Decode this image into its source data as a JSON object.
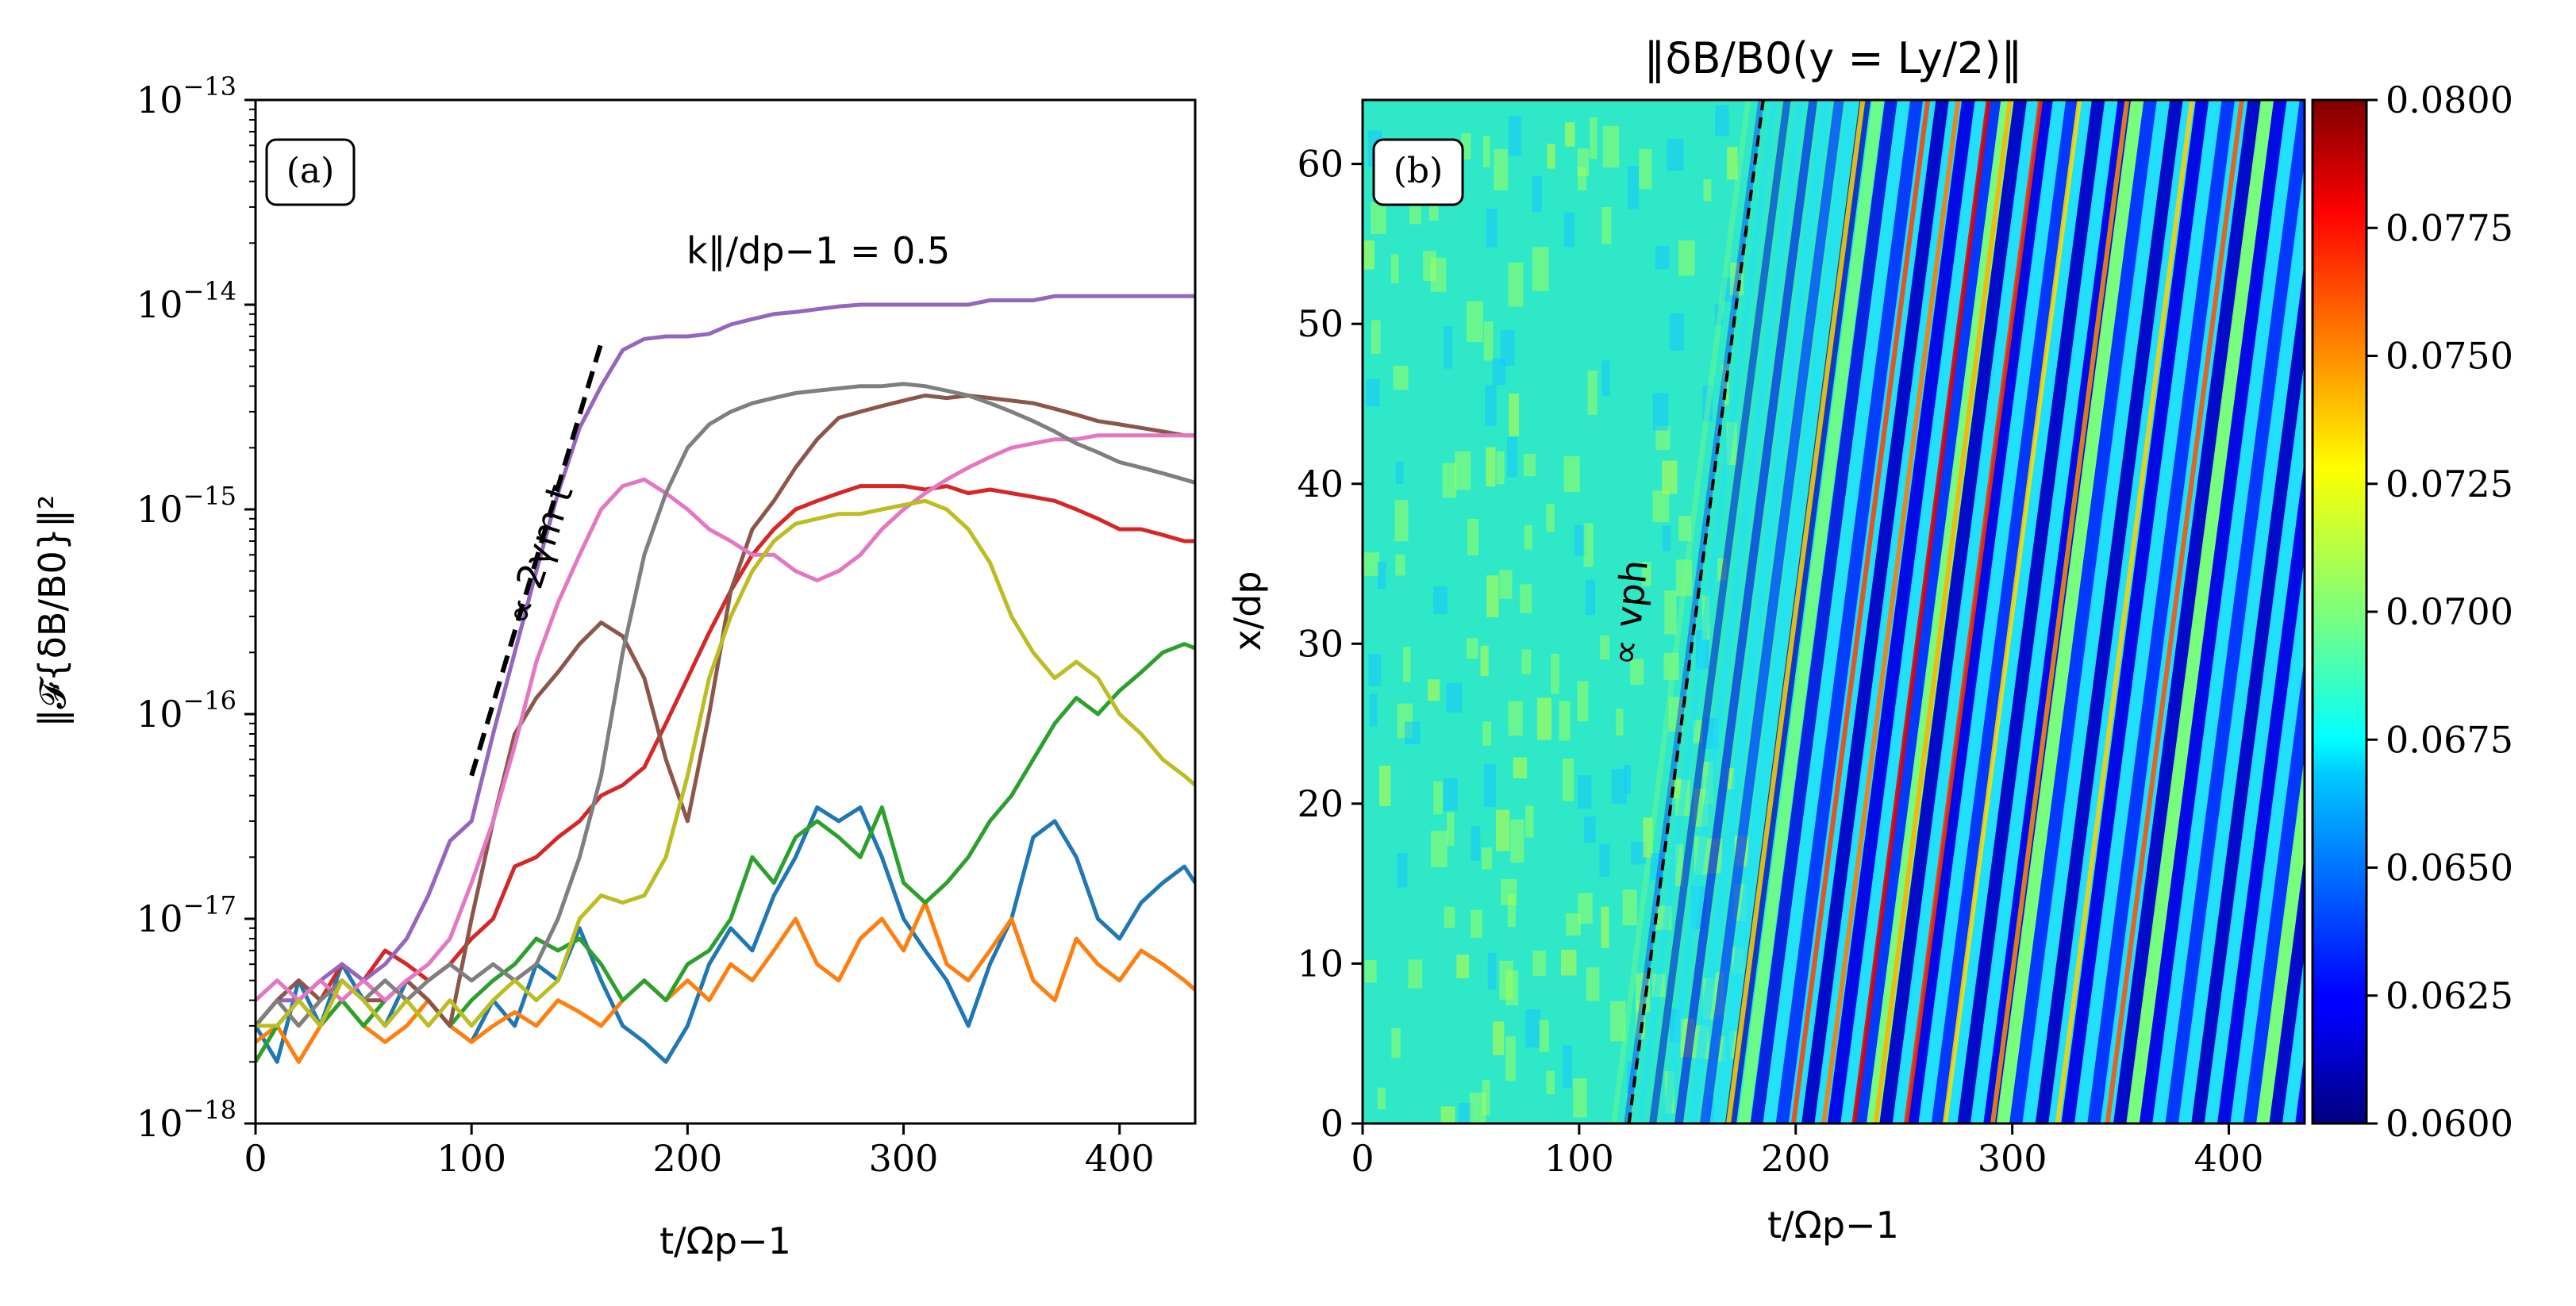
{
  "chart_data": [
    {
      "panel": "(a)",
      "type": "line",
      "yscale": "log",
      "xlim": [
        0,
        435
      ],
      "ylim": [
        1e-18,
        1e-13
      ],
      "xticks": [
        0,
        100,
        200,
        300,
        400
      ],
      "xtick_labels": [
        "0",
        "100",
        "200",
        "300",
        "400"
      ],
      "yticks": [
        1e-18,
        1e-17,
        1e-16,
        1e-15,
        1e-14,
        1e-13
      ],
      "ytick_bases": [
        "10",
        "10",
        "10",
        "10",
        "10",
        "10"
      ],
      "ytick_exponents": [
        "−18",
        "−17",
        "−16",
        "−15",
        "−14",
        "−13"
      ],
      "xlabel": "t/Ωp−1",
      "ylabel": "‖𝓕{δB/B0}‖²",
      "annotations": {
        "k_label": "k∥/dp−1 = 0.5",
        "growth_label": "∝ 2γm t"
      },
      "guide_line": {
        "x": [
          100,
          160
        ],
        "y": [
          5e-17,
          6.5e-15
        ],
        "color": "#000000",
        "style": "dashed"
      },
      "series": [
        {
          "name": "blue",
          "color": "#1f77b4",
          "x": [
            0,
            10,
            20,
            30,
            40,
            50,
            60,
            70,
            80,
            90,
            100,
            110,
            120,
            130,
            140,
            150,
            160,
            170,
            180,
            190,
            200,
            210,
            220,
            230,
            240,
            250,
            260,
            270,
            280,
            290,
            300,
            310,
            320,
            330,
            340,
            350,
            360,
            370,
            380,
            390,
            400,
            410,
            420,
            430,
            435
          ],
          "y": [
            3e-18,
            2e-18,
            5e-18,
            3e-18,
            6e-18,
            4e-18,
            3e-18,
            5e-18,
            4e-18,
            3e-18,
            2.5e-18,
            4e-18,
            3e-18,
            6e-18,
            5e-18,
            9e-18,
            5e-18,
            3e-18,
            2.5e-18,
            2e-18,
            3e-18,
            6e-18,
            9e-18,
            7e-18,
            1.3e-17,
            2e-17,
            3.5e-17,
            3e-17,
            3.5e-17,
            2e-17,
            1e-17,
            7e-18,
            5e-18,
            3e-18,
            6e-18,
            1e-17,
            2.5e-17,
            3e-17,
            2e-17,
            1e-17,
            8e-18,
            1.2e-17,
            1.5e-17,
            1.8e-17,
            1.5e-17
          ]
        },
        {
          "name": "orange",
          "color": "#ff7f0e",
          "x": [
            0,
            10,
            20,
            30,
            40,
            50,
            60,
            70,
            80,
            90,
            100,
            110,
            120,
            130,
            140,
            150,
            160,
            170,
            180,
            190,
            200,
            210,
            220,
            230,
            240,
            250,
            260,
            270,
            280,
            290,
            300,
            310,
            320,
            330,
            340,
            350,
            360,
            370,
            380,
            390,
            400,
            410,
            420,
            430,
            435
          ],
          "y": [
            2.5e-18,
            3e-18,
            2e-18,
            3e-18,
            4e-18,
            3e-18,
            2.5e-18,
            3e-18,
            4e-18,
            3e-18,
            2.5e-18,
            3e-18,
            3.5e-18,
            3e-18,
            4e-18,
            3.5e-18,
            3e-18,
            4e-18,
            5e-18,
            4e-18,
            5e-18,
            4e-18,
            6e-18,
            5e-18,
            7e-18,
            1e-17,
            6e-18,
            5e-18,
            8e-18,
            1e-17,
            7e-18,
            1.2e-17,
            6e-18,
            5e-18,
            7e-18,
            1e-17,
            5e-18,
            4e-18,
            8e-18,
            6e-18,
            5e-18,
            7e-18,
            6e-18,
            5e-18,
            4.5e-18
          ]
        },
        {
          "name": "green",
          "color": "#2ca02c",
          "x": [
            0,
            10,
            20,
            30,
            40,
            50,
            60,
            70,
            80,
            90,
            100,
            110,
            120,
            130,
            140,
            150,
            160,
            170,
            180,
            190,
            200,
            210,
            220,
            230,
            240,
            250,
            260,
            270,
            280,
            290,
            300,
            310,
            320,
            330,
            340,
            350,
            360,
            370,
            380,
            390,
            400,
            410,
            420,
            430,
            435
          ],
          "y": [
            2e-18,
            3e-18,
            4e-18,
            3e-18,
            4e-18,
            3e-18,
            4e-18,
            5e-18,
            4e-18,
            3e-18,
            4e-18,
            5e-18,
            6e-18,
            8e-18,
            7e-18,
            8e-18,
            6e-18,
            4e-18,
            5e-18,
            4e-18,
            6e-18,
            7e-18,
            1e-17,
            2e-17,
            1.5e-17,
            2.5e-17,
            3e-17,
            2.5e-17,
            2e-17,
            3.5e-17,
            1.5e-17,
            1.2e-17,
            1.5e-17,
            2e-17,
            3e-17,
            4e-17,
            6e-17,
            9e-17,
            1.2e-16,
            1e-16,
            1.3e-16,
            1.6e-16,
            2e-16,
            2.2e-16,
            2.1e-16
          ]
        },
        {
          "name": "red",
          "color": "#d62728",
          "x": [
            0,
            10,
            20,
            30,
            40,
            50,
            60,
            70,
            80,
            90,
            100,
            110,
            120,
            130,
            140,
            150,
            160,
            170,
            180,
            190,
            200,
            210,
            220,
            230,
            240,
            250,
            260,
            270,
            280,
            290,
            300,
            310,
            320,
            330,
            340,
            350,
            360,
            370,
            380,
            390,
            400,
            410,
            420,
            430,
            435
          ],
          "y": [
            3e-18,
            4e-18,
            5e-18,
            4e-18,
            6e-18,
            5e-18,
            7e-18,
            6e-18,
            5e-18,
            6e-18,
            8e-18,
            1e-17,
            1.8e-17,
            2e-17,
            2.5e-17,
            3e-17,
            4e-17,
            4.5e-17,
            5.5e-17,
            9e-17,
            1.5e-16,
            2.5e-16,
            4e-16,
            6e-16,
            8e-16,
            1e-15,
            1.1e-15,
            1.2e-15,
            1.3e-15,
            1.3e-15,
            1.3e-15,
            1.25e-15,
            1.3e-15,
            1.2e-15,
            1.25e-15,
            1.2e-15,
            1.15e-15,
            1.1e-15,
            1e-15,
            9e-16,
            8e-16,
            8e-16,
            7.5e-16,
            7e-16,
            7e-16
          ]
        },
        {
          "name": "purple",
          "color": "#9467bd",
          "x": [
            0,
            10,
            20,
            30,
            40,
            50,
            60,
            70,
            80,
            90,
            100,
            110,
            120,
            130,
            140,
            150,
            160,
            170,
            180,
            190,
            200,
            210,
            220,
            230,
            240,
            250,
            260,
            270,
            280,
            290,
            300,
            310,
            320,
            330,
            340,
            350,
            360,
            370,
            380,
            390,
            400,
            410,
            420,
            430,
            435
          ],
          "y": [
            3e-18,
            4e-18,
            4e-18,
            5e-18,
            6e-18,
            5e-18,
            6e-18,
            8e-18,
            1.3e-17,
            2.4e-17,
            3e-17,
            8e-17,
            2e-16,
            5e-16,
            1.2e-15,
            2.5e-15,
            4e-15,
            6e-15,
            6.8e-15,
            7e-15,
            7e-15,
            7.2e-15,
            8e-15,
            8.5e-15,
            9e-15,
            9.2e-15,
            9.5e-15,
            9.8e-15,
            1e-14,
            1e-14,
            1e-14,
            1e-14,
            1e-14,
            1e-14,
            1.05e-14,
            1.05e-14,
            1.05e-14,
            1.1e-14,
            1.1e-14,
            1.1e-14,
            1.1e-14,
            1.1e-14,
            1.1e-14,
            1.1e-14,
            1.1e-14
          ]
        },
        {
          "name": "brown",
          "color": "#8c564b",
          "x": [
            0,
            10,
            20,
            30,
            40,
            50,
            60,
            70,
            80,
            90,
            100,
            110,
            120,
            130,
            140,
            150,
            160,
            170,
            180,
            190,
            200,
            210,
            220,
            230,
            240,
            250,
            260,
            270,
            280,
            290,
            300,
            310,
            320,
            330,
            340,
            350,
            360,
            370,
            380,
            390,
            400,
            410,
            420,
            430,
            435
          ],
          "y": [
            3e-18,
            4e-18,
            5e-18,
            4e-18,
            5e-18,
            4e-18,
            4e-18,
            5e-18,
            4e-18,
            3e-18,
            1e-17,
            3e-17,
            8e-17,
            1.2e-16,
            1.6e-16,
            2.2e-16,
            2.8e-16,
            2.4e-16,
            1.5e-16,
            6e-17,
            3e-17,
            1e-16,
            4e-16,
            8e-16,
            1.1e-15,
            1.6e-15,
            2.2e-15,
            2.8e-15,
            3e-15,
            3.2e-15,
            3.4e-15,
            3.6e-15,
            3.5e-15,
            3.6e-15,
            3.5e-15,
            3.4e-15,
            3.3e-15,
            3.1e-15,
            2.9e-15,
            2.7e-15,
            2.6e-15,
            2.5e-15,
            2.4e-15,
            2.3e-15,
            2.3e-15
          ]
        },
        {
          "name": "pink",
          "color": "#e377c2",
          "x": [
            0,
            10,
            20,
            30,
            40,
            50,
            60,
            70,
            80,
            90,
            100,
            110,
            120,
            130,
            140,
            150,
            160,
            170,
            180,
            190,
            200,
            210,
            220,
            230,
            240,
            250,
            260,
            270,
            280,
            290,
            300,
            310,
            320,
            330,
            340,
            350,
            360,
            370,
            380,
            390,
            400,
            410,
            420,
            430,
            435
          ],
          "y": [
            4e-18,
            5e-18,
            4e-18,
            5e-18,
            4e-18,
            5e-18,
            4e-18,
            5e-18,
            6e-18,
            8e-18,
            1.5e-17,
            3e-17,
            7e-17,
            1.8e-16,
            3.5e-16,
            6e-16,
            1e-15,
            1.3e-15,
            1.4e-15,
            1.2e-15,
            1e-15,
            8e-16,
            7e-16,
            6e-16,
            6e-16,
            5e-16,
            4.5e-16,
            5e-16,
            6e-16,
            8e-16,
            1e-15,
            1.2e-15,
            1.4e-15,
            1.6e-15,
            1.8e-15,
            2e-15,
            2.1e-15,
            2.2e-15,
            2.2e-15,
            2.3e-15,
            2.3e-15,
            2.3e-15,
            2.3e-15,
            2.3e-15,
            2.3e-15
          ]
        },
        {
          "name": "gray",
          "color": "#7f7f7f",
          "x": [
            0,
            10,
            20,
            30,
            40,
            50,
            60,
            70,
            80,
            90,
            100,
            110,
            120,
            130,
            140,
            150,
            160,
            170,
            180,
            190,
            200,
            210,
            220,
            230,
            240,
            250,
            260,
            270,
            280,
            290,
            300,
            310,
            320,
            330,
            340,
            350,
            360,
            370,
            380,
            390,
            400,
            410,
            420,
            430,
            435
          ],
          "y": [
            3e-18,
            4e-18,
            3e-18,
            4e-18,
            5e-18,
            4e-18,
            5e-18,
            4e-18,
            5e-18,
            6e-18,
            5e-18,
            6e-18,
            5e-18,
            6e-18,
            1e-17,
            2e-17,
            5e-17,
            2e-16,
            6e-16,
            1.2e-15,
            2e-15,
            2.6e-15,
            3e-15,
            3.3e-15,
            3.5e-15,
            3.7e-15,
            3.8e-15,
            3.9e-15,
            4e-15,
            4e-15,
            4.1e-15,
            4e-15,
            3.8e-15,
            3.6e-15,
            3.3e-15,
            3e-15,
            2.7e-15,
            2.4e-15,
            2.1e-15,
            1.9e-15,
            1.7e-15,
            1.6e-15,
            1.5e-15,
            1.4e-15,
            1.35e-15
          ]
        },
        {
          "name": "olive",
          "color": "#bcbd22",
          "x": [
            0,
            10,
            20,
            30,
            40,
            50,
            60,
            70,
            80,
            90,
            100,
            110,
            120,
            130,
            140,
            150,
            160,
            170,
            180,
            190,
            200,
            210,
            220,
            230,
            240,
            250,
            260,
            270,
            280,
            290,
            300,
            310,
            320,
            330,
            340,
            350,
            360,
            370,
            380,
            390,
            400,
            410,
            420,
            430,
            435
          ],
          "y": [
            3e-18,
            3e-18,
            4e-18,
            3e-18,
            5e-18,
            4e-18,
            3e-18,
            4e-18,
            3e-18,
            4e-18,
            3e-18,
            4e-18,
            5e-18,
            4e-18,
            5e-18,
            1e-17,
            1.3e-17,
            1.2e-17,
            1.3e-17,
            2e-17,
            5e-17,
            1.5e-16,
            3e-16,
            5e-16,
            7e-16,
            8.5e-16,
            9e-16,
            9.5e-16,
            9.5e-16,
            1e-15,
            1.05e-15,
            1.1e-15,
            1e-15,
            8e-16,
            5.5e-16,
            3e-16,
            2e-16,
            1.5e-16,
            1.8e-16,
            1.5e-16,
            1e-16,
            8e-17,
            6e-17,
            5e-17,
            4.5e-17
          ]
        }
      ]
    },
    {
      "panel": "(b)",
      "type": "heatmap",
      "title": "‖δB/B0(y = Ly/2)‖",
      "xlim": [
        0,
        435
      ],
      "ylim": [
        0,
        64
      ],
      "xticks": [
        0,
        100,
        200,
        300,
        400
      ],
      "xtick_labels": [
        "0",
        "100",
        "200",
        "300",
        "400"
      ],
      "yticks": [
        0,
        10,
        20,
        30,
        40,
        50,
        60
      ],
      "ytick_labels": [
        "0",
        "10",
        "20",
        "30",
        "40",
        "50",
        "60"
      ],
      "xlabel": "t/Ωp−1",
      "ylabel": "x/dp",
      "colormap": "jet",
      "clim": [
        0.06,
        0.08
      ],
      "colorbar_ticks": [
        0.06,
        0.0625,
        0.065,
        0.0675,
        0.07,
        0.0725,
        0.075,
        0.0775,
        0.08
      ],
      "colorbar_tick_labels": [
        "0.0600",
        "0.0625",
        "0.0650",
        "0.0675",
        "0.0700",
        "0.0725",
        "0.0750",
        "0.0775",
        "0.0800"
      ],
      "phase_line": {
        "x": [
          123,
          185
        ],
        "y": [
          0,
          64
        ],
        "label": "∝ vph",
        "color": "#000000",
        "style": "dashed"
      },
      "description_values": {
        "quiet_level": 0.0685,
        "onset_t": 170,
        "stripe_period_t": 12,
        "stripe_slope_t_per_dp": 0.97
      }
    }
  ]
}
